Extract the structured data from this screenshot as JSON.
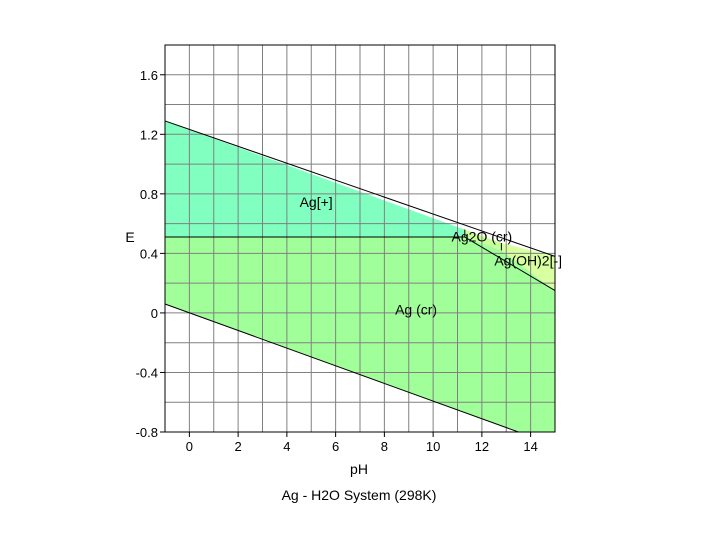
{
  "chart_data": {
    "type": "area",
    "title": "Ag - H2O System (298K)",
    "xlabel": "pH",
    "ylabel": "E",
    "xlim": [
      -1,
      15
    ],
    "ylim": [
      -0.8,
      1.8
    ],
    "grid": true,
    "x_ticks": [
      0,
      2,
      4,
      6,
      8,
      10,
      12,
      14
    ],
    "x_tick_labels": [
      "0",
      "2",
      "4",
      "6",
      "8",
      "10",
      "12",
      "14"
    ],
    "y_ticks": [
      -0.8,
      -0.4,
      0,
      0.4,
      0.8,
      1.2,
      1.6
    ],
    "y_tick_labels": [
      "-0.8",
      "-0.4",
      "0",
      "0.4",
      "0.8",
      "1.2",
      "1.6"
    ],
    "colors": {
      "ag_ion": "#80FFC0",
      "ag_metal": "#A0FF98",
      "ag2o": "#C8FF98",
      "ag_oh2": "#D8FFA0",
      "grid": "#808080",
      "boundary": "#000000"
    },
    "regions": [
      {
        "name": "Ag[+]",
        "label_at": [
          5.2,
          0.71
        ],
        "color_key": "ag_ion",
        "polygon": [
          [
            -1,
            1.29
          ],
          [
            -1,
            0.51
          ],
          [
            11.3,
            0.51
          ],
          [
            11.3,
            0.56
          ]
        ]
      },
      {
        "name": "Ag (cr)",
        "label_at": [
          9.3,
          -0.01
        ],
        "color_key": "ag_metal",
        "polygon": [
          [
            -1,
            0.51
          ],
          [
            11.3,
            0.51
          ],
          [
            12.8,
            0.42
          ],
          [
            15,
            0.15
          ],
          [
            15,
            -0.8
          ],
          [
            13.5,
            -0.8
          ],
          [
            -1,
            0.06
          ]
        ]
      },
      {
        "name": "Ag2O (cr)",
        "label_at": [
          12.0,
          0.48
        ],
        "color_key": "ag2o",
        "polygon": [
          [
            11.3,
            0.56
          ],
          [
            11.3,
            0.51
          ],
          [
            12.8,
            0.42
          ],
          [
            12.8,
            0.47
          ]
        ]
      },
      {
        "name": "Ag(OH)2[-]",
        "label_at": [
          13.9,
          0.32
        ],
        "color_key": "ag_oh2",
        "polygon": [
          [
            12.8,
            0.47
          ],
          [
            12.8,
            0.42
          ],
          [
            15,
            0.15
          ],
          [
            15,
            0.38
          ]
        ]
      }
    ],
    "boundaries": [
      {
        "from": [
          -1,
          1.29
        ],
        "to": [
          15,
          0.38
        ]
      },
      {
        "from": [
          -1,
          0.06
        ],
        "to": [
          13.5,
          -0.8
        ]
      },
      {
        "from": [
          -1,
          0.51
        ],
        "to": [
          11.3,
          0.51
        ]
      },
      {
        "from": [
          11.3,
          0.51
        ],
        "to": [
          15,
          0.15
        ]
      },
      {
        "from": [
          11.3,
          0.51
        ],
        "to": [
          11.3,
          0.56
        ]
      },
      {
        "from": [
          12.8,
          0.42
        ],
        "to": [
          12.8,
          0.47
        ]
      }
    ]
  }
}
